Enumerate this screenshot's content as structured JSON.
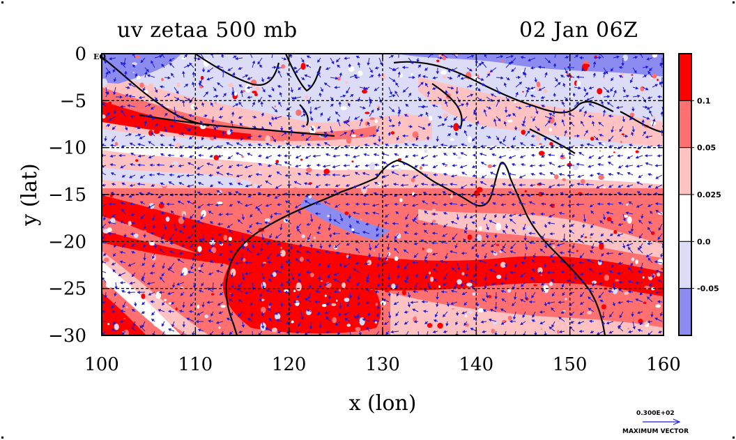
{
  "title_left": "uv zetaa 500 mb",
  "title_right": "02 Jan 06Z",
  "corner_label": "EQ",
  "vector_scale": "0.300E+02",
  "vector_scale_title": "MAXIMUM VECTOR",
  "colors": {
    "strong_pos": "#ff0000",
    "mid_pos": "#ff7070",
    "weak_pos": "#ffc2c2",
    "neutral": "#ffffff",
    "weak_neg": "#dcdcf7",
    "strong_neg": "#8c8cf0",
    "vectors": "#1c1cd8",
    "coast": "#000000",
    "grid": "#000000"
  },
  "chart_data": {
    "type": "heatmap",
    "title": "uv zetaa 500 mb",
    "xlabel": "x (lon)",
    "ylabel": "y (lat)",
    "xlim": [
      100,
      160
    ],
    "ylim": [
      -30,
      0
    ],
    "xticks": [
      100,
      110,
      120,
      130,
      140,
      150,
      160
    ],
    "xtick_labels": [
      "100",
      "110",
      "120",
      "130",
      "140",
      "150",
      "160"
    ],
    "yticks": [
      0,
      -5,
      -10,
      -15,
      -20,
      -25,
      -30
    ],
    "ytick_labels": [
      "0",
      "−5",
      "−10",
      "−15",
      "−20",
      "−25",
      "−30"
    ],
    "grid": true,
    "colorbar": {
      "labels": [
        "0.1",
        "0.05",
        "0.025",
        "0.0",
        "-0.05"
      ],
      "colors": [
        "#ff0000",
        "#ff7070",
        "#ffc2c2",
        "#ffffff",
        "#dcdcf7",
        "#8c8cf0"
      ]
    }
  }
}
